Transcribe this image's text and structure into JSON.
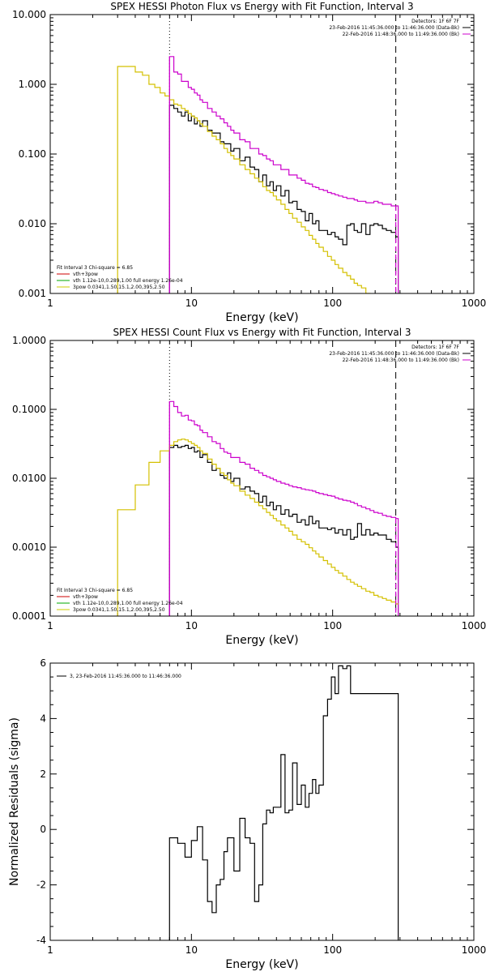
{
  "chart_data": [
    {
      "type": "line",
      "title": "SPEX HESSI Photon Flux vs Energy with Fit Function, Interval 3",
      "xlabel": "Energy (keV)",
      "ylabel": "",
      "xscale": "log",
      "yscale": "log",
      "xlim": [
        1,
        1000
      ],
      "ylim": [
        0.001,
        10
      ],
      "xticks": [
        1,
        10,
        100,
        1000
      ],
      "xtick_labels": [
        "1",
        "10",
        "100",
        "1000"
      ],
      "yticks": [
        0.001,
        0.01,
        0.1,
        1,
        10
      ],
      "ytick_labels": [
        "0.001",
        "0.010",
        "0.100",
        "1.000",
        "10.000"
      ],
      "top_right_text": [
        "Detectors: 1F 6F 7F",
        "23-Feb-2016 11:45:36.000 to 11:46:36.000 (Data-Bk)",
        "22-Feb-2016 11:48:36.000 to 11:49:36.000 (Bk)"
      ],
      "legend_title": "Fit Interval 3   Chi-square = 6.85",
      "legend": [
        {
          "label": "vth+3pow",
          "color": "#cc0000"
        },
        {
          "label": "vth 1.12e-10,0.289,1.00  full energy 1.26e-04",
          "color": "#00aa00"
        },
        {
          "label": "3pow 0.0341,1.50,15.1,2.00,395,2.50",
          "color": "#cccc00"
        }
      ],
      "vlines": [
        {
          "x": 7,
          "style": "dotted",
          "color": "#000000"
        },
        {
          "x": 280,
          "style": "dashed",
          "color": "#000000"
        }
      ],
      "series": [
        {
          "name": "Data-Bk",
          "color": "#000000",
          "x": [
            7,
            7.5,
            8,
            8.5,
            9,
            9.5,
            10,
            10.5,
            11,
            11.5,
            12,
            13,
            14,
            15,
            16,
            17,
            18,
            19,
            20,
            22,
            24,
            26,
            28,
            30,
            32,
            34,
            36,
            38,
            40,
            43,
            46,
            49,
            52,
            56,
            60,
            64,
            68,
            72,
            76,
            80,
            86,
            92,
            98,
            104,
            110,
            118,
            126,
            134,
            142,
            150,
            160,
            172,
            184,
            196,
            210,
            225,
            240,
            260,
            280
          ],
          "y": [
            0.5,
            0.45,
            0.4,
            0.35,
            0.4,
            0.3,
            0.35,
            0.27,
            0.3,
            0.25,
            0.3,
            0.22,
            0.2,
            0.2,
            0.15,
            0.14,
            0.14,
            0.11,
            0.12,
            0.08,
            0.09,
            0.065,
            0.06,
            0.04,
            0.05,
            0.035,
            0.04,
            0.03,
            0.035,
            0.025,
            0.03,
            0.02,
            0.021,
            0.016,
            0.015,
            0.011,
            0.014,
            0.01,
            0.011,
            0.008,
            0.008,
            0.007,
            0.0075,
            0.0065,
            0.006,
            0.005,
            0.0095,
            0.01,
            0.008,
            0.0075,
            0.01,
            0.007,
            0.0095,
            0.01,
            0.0095,
            0.0085,
            0.008,
            0.0075,
            0.0065
          ]
        },
        {
          "name": "Bk",
          "color": "#cc00cc",
          "x": [
            7,
            7.5,
            8,
            8.5,
            9,
            9.5,
            10,
            10.5,
            11,
            11.5,
            12,
            13,
            14,
            15,
            16,
            17,
            18,
            19,
            20,
            22,
            24,
            26,
            28,
            30,
            32,
            34,
            36,
            38,
            40,
            43,
            46,
            49,
            52,
            56,
            60,
            64,
            68,
            72,
            76,
            80,
            86,
            92,
            98,
            104,
            110,
            118,
            126,
            134,
            142,
            150,
            160,
            172,
            184,
            196,
            210,
            225,
            240,
            260,
            280
          ],
          "y": [
            2.5,
            1.5,
            1.4,
            1.1,
            1.1,
            0.9,
            0.85,
            0.75,
            0.7,
            0.6,
            0.55,
            0.45,
            0.4,
            0.35,
            0.32,
            0.28,
            0.25,
            0.22,
            0.2,
            0.16,
            0.15,
            0.12,
            0.12,
            0.1,
            0.095,
            0.085,
            0.08,
            0.07,
            0.07,
            0.06,
            0.06,
            0.05,
            0.05,
            0.045,
            0.042,
            0.038,
            0.037,
            0.034,
            0.033,
            0.031,
            0.03,
            0.028,
            0.027,
            0.026,
            0.025,
            0.024,
            0.023,
            0.023,
            0.022,
            0.021,
            0.021,
            0.02,
            0.02,
            0.021,
            0.02,
            0.019,
            0.019,
            0.018,
            0.018
          ]
        },
        {
          "name": "3pow",
          "color": "#d4c000",
          "x": [
            3,
            3.5,
            4,
            4.5,
            5,
            5.5,
            6,
            6.5,
            7,
            7.5,
            8,
            8.5,
            9,
            9.5,
            10,
            10.5,
            11,
            11.5,
            12,
            13,
            14,
            15,
            16,
            17,
            18,
            19,
            20,
            22,
            24,
            26,
            28,
            30,
            32,
            34,
            36,
            38,
            40,
            43,
            46,
            49,
            52,
            56,
            60,
            64,
            68,
            72,
            76,
            80,
            86,
            92,
            98,
            104,
            110,
            118,
            126,
            134,
            142,
            150,
            160,
            172,
            184,
            196,
            210,
            225,
            240
          ],
          "y": [
            1.8,
            1.8,
            1.5,
            1.35,
            1.0,
            0.9,
            0.75,
            0.68,
            0.6,
            0.52,
            0.5,
            0.45,
            0.42,
            0.38,
            0.35,
            0.33,
            0.3,
            0.27,
            0.25,
            0.21,
            0.18,
            0.16,
            0.14,
            0.12,
            0.105,
            0.095,
            0.085,
            0.07,
            0.06,
            0.052,
            0.045,
            0.04,
            0.034,
            0.03,
            0.028,
            0.025,
            0.022,
            0.019,
            0.016,
            0.014,
            0.012,
            0.0105,
            0.009,
            0.008,
            0.0068,
            0.006,
            0.0052,
            0.0046,
            0.004,
            0.0034,
            0.003,
            0.0026,
            0.0023,
            0.002,
            0.0018,
            0.0016,
            0.0014,
            0.0013,
            0.0012,
            0.001,
            0.0009,
            0.0009,
            0.0008,
            0.0008,
            0.0008
          ]
        }
      ]
    },
    {
      "type": "line",
      "title": "SPEX HESSI Count Flux vs Energy with Fit Function, Interval 3",
      "xlabel": "Energy (keV)",
      "ylabel": "",
      "xscale": "log",
      "yscale": "log",
      "xlim": [
        1,
        1000
      ],
      "ylim": [
        0.0001,
        1
      ],
      "xticks": [
        1,
        10,
        100,
        1000
      ],
      "xtick_labels": [
        "1",
        "10",
        "100",
        "1000"
      ],
      "yticks": [
        0.0001,
        0.001,
        0.01,
        0.1,
        1
      ],
      "ytick_labels": [
        "0.0001",
        "0.0010",
        "0.0100",
        "0.1000",
        "1.0000"
      ],
      "top_right_text": [
        "Detectors: 1F 6F 7F",
        "23-Feb-2016 11:45:36.000 to 11:46:36.000 (Data-Bk)",
        "22-Feb-2016 11:48:36.000 to 11:49:36.000 (Bk)"
      ],
      "legend_title": "Fit Interval 3   Chi-square = 6.85",
      "legend": [
        {
          "label": "vth+3pow",
          "color": "#cc0000"
        },
        {
          "label": "vth 1.12e-10,0.289,1.00  full energy 1.26e-04",
          "color": "#00aa00"
        },
        {
          "label": "3pow 0.0341,1.50,15.1,2.00,395,2.50",
          "color": "#cccc00"
        }
      ],
      "vlines": [
        {
          "x": 7,
          "style": "dotted",
          "color": "#000000"
        },
        {
          "x": 280,
          "style": "dashed",
          "color": "#000000"
        }
      ],
      "series": [
        {
          "name": "Data-Bk",
          "color": "#000000",
          "x": [
            7,
            7.5,
            8,
            8.5,
            9,
            9.5,
            10,
            10.5,
            11,
            11.5,
            12,
            13,
            14,
            15,
            16,
            17,
            18,
            19,
            20,
            22,
            24,
            26,
            28,
            30,
            32,
            34,
            36,
            38,
            40,
            43,
            46,
            49,
            52,
            56,
            60,
            64,
            68,
            72,
            76,
            80,
            86,
            92,
            98,
            104,
            110,
            118,
            126,
            134,
            142,
            150,
            160,
            172,
            184,
            196,
            210,
            225,
            240,
            260,
            280
          ],
          "y": [
            0.028,
            0.03,
            0.028,
            0.029,
            0.03,
            0.027,
            0.028,
            0.024,
            0.025,
            0.02,
            0.022,
            0.017,
            0.013,
            0.014,
            0.011,
            0.01,
            0.012,
            0.009,
            0.01,
            0.007,
            0.0075,
            0.0065,
            0.006,
            0.0045,
            0.0055,
            0.004,
            0.0045,
            0.0035,
            0.004,
            0.003,
            0.0035,
            0.0028,
            0.003,
            0.0023,
            0.0025,
            0.0021,
            0.0028,
            0.0022,
            0.0024,
            0.0019,
            0.0019,
            0.0018,
            0.0019,
            0.0016,
            0.0018,
            0.0015,
            0.0018,
            0.0013,
            0.0014,
            0.0022,
            0.0015,
            0.0018,
            0.0015,
            0.0016,
            0.0015,
            0.0015,
            0.0013,
            0.0012,
            0.001
          ]
        },
        {
          "name": "Bk",
          "color": "#cc00cc",
          "x": [
            7,
            7.5,
            8,
            8.5,
            9,
            9.5,
            10,
            10.5,
            11,
            11.5,
            12,
            13,
            14,
            15,
            16,
            17,
            18,
            19,
            20,
            22,
            24,
            26,
            28,
            30,
            32,
            34,
            36,
            38,
            40,
            43,
            46,
            49,
            52,
            56,
            60,
            64,
            68,
            72,
            76,
            80,
            86,
            92,
            98,
            104,
            110,
            118,
            126,
            134,
            142,
            150,
            160,
            172,
            184,
            196,
            210,
            225,
            240,
            260,
            280
          ],
          "y": [
            0.13,
            0.11,
            0.09,
            0.08,
            0.082,
            0.07,
            0.068,
            0.06,
            0.058,
            0.05,
            0.046,
            0.04,
            0.034,
            0.032,
            0.027,
            0.024,
            0.023,
            0.02,
            0.02,
            0.017,
            0.016,
            0.014,
            0.013,
            0.012,
            0.011,
            0.0105,
            0.01,
            0.0095,
            0.009,
            0.0085,
            0.0082,
            0.0078,
            0.0075,
            0.0073,
            0.007,
            0.0068,
            0.0067,
            0.0065,
            0.0062,
            0.006,
            0.0058,
            0.0056,
            0.0055,
            0.0052,
            0.005,
            0.0048,
            0.0047,
            0.0045,
            0.0043,
            0.004,
            0.0038,
            0.0036,
            0.0034,
            0.0032,
            0.0031,
            0.0029,
            0.0028,
            0.0027,
            0.0026
          ]
        },
        {
          "name": "3pow",
          "color": "#d4c000",
          "x": [
            3,
            4,
            5,
            6,
            7,
            7.5,
            8,
            8.5,
            9,
            9.5,
            10,
            10.5,
            11,
            11.5,
            12,
            13,
            14,
            15,
            16,
            17,
            18,
            19,
            20,
            22,
            24,
            26,
            28,
            30,
            32,
            34,
            36,
            38,
            40,
            43,
            46,
            49,
            52,
            56,
            60,
            64,
            68,
            72,
            76,
            80,
            86,
            92,
            98,
            104,
            110,
            118,
            126,
            134,
            142,
            150,
            160,
            172,
            184,
            196,
            210,
            225,
            240,
            260,
            280
          ],
          "y": [
            0.0035,
            0.008,
            0.017,
            0.025,
            0.03,
            0.034,
            0.036,
            0.037,
            0.036,
            0.034,
            0.032,
            0.03,
            0.028,
            0.025,
            0.023,
            0.019,
            0.016,
            0.014,
            0.012,
            0.011,
            0.0095,
            0.0085,
            0.0078,
            0.0065,
            0.0057,
            0.0051,
            0.0045,
            0.004,
            0.0036,
            0.0032,
            0.0029,
            0.0026,
            0.0024,
            0.0021,
            0.0019,
            0.0017,
            0.0015,
            0.0013,
            0.0012,
            0.0011,
            0.00098,
            0.00088,
            0.0008,
            0.00072,
            0.00064,
            0.00057,
            0.00051,
            0.00046,
            0.00042,
            0.00038,
            0.00034,
            0.00031,
            0.00029,
            0.00027,
            0.00025,
            0.00023,
            0.00022,
            0.0002,
            0.00019,
            0.00018,
            0.00017,
            0.00016,
            0.00015
          ]
        }
      ]
    },
    {
      "type": "line",
      "title": "",
      "xlabel": "Energy (keV)",
      "ylabel": "Normalized Residuals (sigma)",
      "xscale": "log",
      "yscale": "linear",
      "xlim": [
        1,
        1000
      ],
      "ylim": [
        -4,
        6
      ],
      "xticks": [
        1,
        10,
        100,
        1000
      ],
      "xtick_labels": [
        "1",
        "10",
        "100",
        "1000"
      ],
      "yticks": [
        -4,
        -2,
        0,
        2,
        4,
        6
      ],
      "ytick_labels": [
        "-4",
        "-2",
        "0",
        "2",
        "4",
        "6"
      ],
      "legend": [
        {
          "label": "3, 23-Feb-2016 11:45:36.000 to 11:46:36.000",
          "color": "#000000"
        }
      ],
      "series": [
        {
          "name": "3, 23-Feb-2016 11:45:36.000 to 11:46:36.000",
          "color": "#000000",
          "x": [
            7,
            8,
            9,
            10,
            11,
            12,
            13,
            14,
            15,
            16,
            17,
            18,
            20,
            22,
            24,
            26,
            28,
            30,
            32,
            34,
            36,
            38,
            40,
            43,
            46,
            49,
            52,
            56,
            60,
            64,
            68,
            72,
            76,
            80,
            86,
            92,
            98,
            104,
            110,
            118,
            126,
            134,
            142,
            150,
            160,
            172,
            184,
            196,
            210,
            225,
            240,
            260,
            280
          ],
          "y": [
            -0.3,
            -0.5,
            -1.0,
            -0.4,
            0.1,
            -1.1,
            -2.6,
            -3.0,
            -2.0,
            -1.8,
            -0.8,
            -0.3,
            -1.5,
            0.4,
            -0.3,
            -0.5,
            -2.6,
            -2.0,
            0.2,
            0.7,
            0.6,
            0.8,
            0.8,
            2.7,
            0.6,
            0.7,
            2.4,
            0.9,
            1.6,
            0.8,
            1.3,
            1.8,
            1.3,
            1.6,
            4.1,
            4.7,
            5.5,
            4.9,
            5.9,
            5.8,
            5.9,
            4.9,
            4.9,
            4.9,
            4.9,
            4.9,
            4.9,
            4.9,
            4.9,
            4.9,
            4.9,
            4.9,
            4.9
          ]
        }
      ]
    }
  ]
}
